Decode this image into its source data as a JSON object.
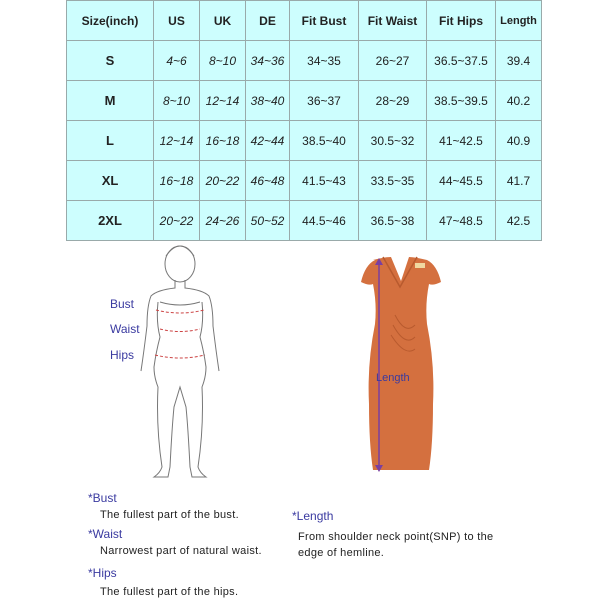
{
  "table": {
    "headers": [
      "Size(inch)",
      "US",
      "UK",
      "DE",
      "Fit Bust",
      "Fit Waist",
      "Fit Hips",
      "Length"
    ],
    "rows": [
      [
        "S",
        "4~6",
        "8~10",
        "34~36",
        "34~35",
        "26~27",
        "36.5~37.5",
        "39.4"
      ],
      [
        "M",
        "8~10",
        "12~14",
        "38~40",
        "36~37",
        "28~29",
        "38.5~39.5",
        "40.2"
      ],
      [
        "L",
        "12~14",
        "16~18",
        "42~44",
        "38.5~40",
        "30.5~32",
        "41~42.5",
        "40.9"
      ],
      [
        "XL",
        "16~18",
        "20~22",
        "46~48",
        "41.5~43",
        "33.5~35",
        "44~45.5",
        "41.7"
      ],
      [
        "2XL",
        "20~22",
        "24~26",
        "50~52",
        "44.5~46",
        "36.5~38",
        "47~48.5",
        "42.5"
      ]
    ]
  },
  "figure_labels": {
    "bust": "Bust",
    "waist": "Waist",
    "hips": "Hips",
    "length": "Length"
  },
  "definitions": {
    "bust_title": "*Bust",
    "bust_text": "The fullest part of the bust.",
    "waist_title": "*Waist",
    "waist_text": "Narrowest part of natural waist.",
    "hips_title": "*Hips",
    "hips_text": "The fullest part of the hips.",
    "length_title": "*Length",
    "length_text_1": "From shoulder neck point(SNP) to the",
    "length_text_2": "edge of hemline."
  },
  "colors": {
    "table_bg": "#cdfefe",
    "label": "#3a3aa0",
    "dress": "#d4703f",
    "measure": "#7a3fa0"
  }
}
